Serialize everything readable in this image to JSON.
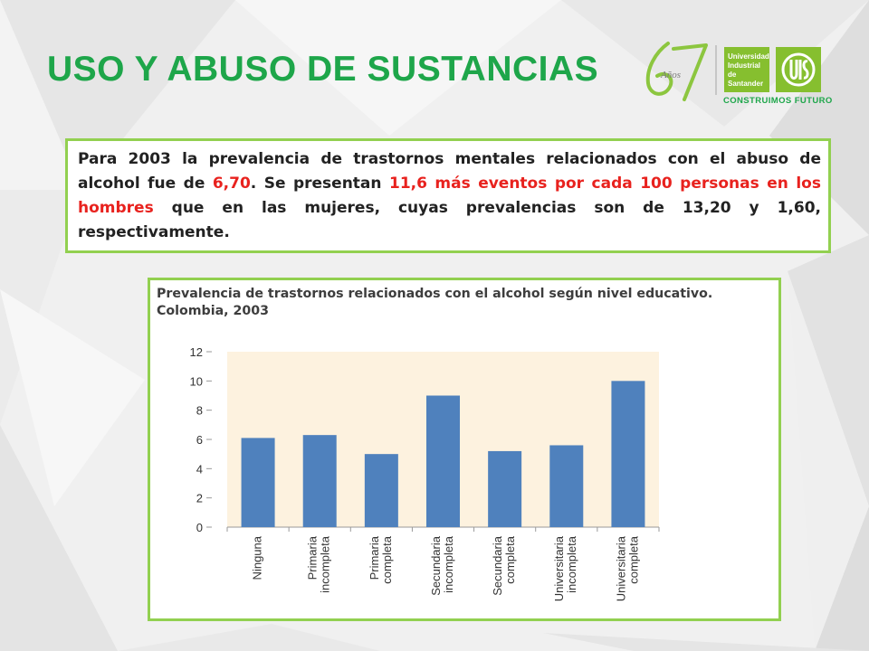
{
  "slide": {
    "title": "USO Y ABUSO DE SUSTANCIAS",
    "logo": {
      "anniversary_number": "67",
      "anniversary_word": "Años",
      "university_lines": [
        "Universidad",
        "Industrial de",
        "Santander"
      ],
      "uis_mark": "UIS",
      "tagline": "CONSTRUIMOS FUTURO"
    },
    "paragraph": {
      "p1": "Para 2003 la prevalencia de trastornos mentales relacionados con el abuso de alcohol fue de ",
      "v1": "6,70",
      "p2": ". Se presentan ",
      "v2": "11,6 más eventos por cada 100 personas en los hombres",
      "p3": " que en las mujeres, cuyas prevalencias son de 13,20 y 1,60, respectivamente."
    },
    "colors": {
      "title_green": "#1ea64a",
      "border_green": "#92d050",
      "highlight_red": "#e8221e",
      "bar_blue": "#4f81bd",
      "plot_bg": "#fdf2df"
    }
  },
  "chart_data": {
    "type": "bar",
    "title_lines": [
      "Prevalencia de trastornos relacionados con el alcohol según nivel educativo.",
      "Colombia, 2003"
    ],
    "categories": [
      [
        "Ninguna"
      ],
      [
        "Primaria",
        "incompleta"
      ],
      [
        "Primaria",
        "completa"
      ],
      [
        "Secundaria",
        "incompleta"
      ],
      [
        "Secundaria",
        "completa"
      ],
      [
        "Universitaria",
        "incompleta"
      ],
      [
        "Universitaria",
        "completa"
      ]
    ],
    "values": [
      6.1,
      6.3,
      5.0,
      9.0,
      5.2,
      5.6,
      10.0
    ],
    "ylim": [
      0,
      12
    ],
    "yticks": [
      "0",
      "2",
      "4",
      "6",
      "8",
      "10",
      "12"
    ],
    "grid": false
  }
}
